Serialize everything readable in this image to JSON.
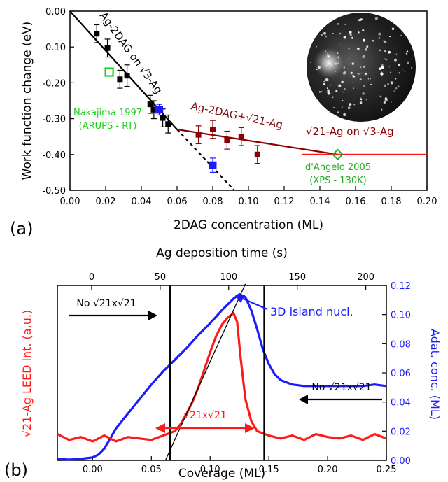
{
  "colors": {
    "black": "#000000",
    "blue": "#1b1bff",
    "red": "#ff1a1a",
    "darkred": "#8b0000",
    "wine": "#7a1010",
    "green": "#22cc22",
    "lightgreen": "#22bb22"
  },
  "panels": {
    "a": {
      "tag": "(a)",
      "inset_image": "LEED diffraction pattern (dark circular screen with bright spots)"
    },
    "b": {
      "tag": "(b)"
    }
  },
  "chart_data": [
    {
      "id": "panel-a",
      "type": "scatter",
      "title": "",
      "xlabel": "2DAG concentration (ML)",
      "ylabel": "Work function change (eV)",
      "xlim": [
        0.0,
        0.2
      ],
      "ylim": [
        -0.5,
        0.0
      ],
      "xticks": [
        0.0,
        0.02,
        0.04,
        0.06,
        0.08,
        0.1,
        0.12,
        0.14,
        0.16,
        0.18,
        0.2
      ],
      "xtick_labels": [
        "0.00",
        "0.02",
        "0.04",
        "0.06",
        "0.08",
        "0.10",
        "0.12",
        "0.14",
        "0.16",
        "0.18",
        "0.20"
      ],
      "yticks": [
        0.0,
        -0.1,
        -0.2,
        -0.3,
        -0.4,
        -0.5
      ],
      "ytick_labels": [
        "0.00",
        "-0.10",
        "-0.20",
        "-0.30",
        "-0.40",
        "-0.50"
      ],
      "grid": false,
      "series": [
        {
          "color": "#000000",
          "marker": "square",
          "points": [
            {
              "x": 0.015,
              "y": -0.063,
              "err": 0.025
            },
            {
              "x": 0.021,
              "y": -0.103,
              "err": 0.025
            },
            {
              "x": 0.028,
              "y": -0.19,
              "err": 0.025
            },
            {
              "x": 0.032,
              "y": -0.18,
              "err": 0.03
            },
            {
              "x": 0.045,
              "y": -0.26,
              "err": 0.025
            },
            {
              "x": 0.047,
              "y": -0.275,
              "err": 0.025
            },
            {
              "x": 0.052,
              "y": -0.298,
              "err": 0.025
            },
            {
              "x": 0.055,
              "y": -0.315,
              "err": 0.025
            }
          ]
        },
        {
          "color": "#8b0000",
          "marker": "square",
          "points": [
            {
              "x": 0.072,
              "y": -0.345,
              "err": 0.025
            },
            {
              "x": 0.08,
              "y": -0.33,
              "err": 0.025
            },
            {
              "x": 0.088,
              "y": -0.36,
              "err": 0.025
            },
            {
              "x": 0.096,
              "y": -0.35,
              "err": 0.025
            },
            {
              "x": 0.105,
              "y": -0.4,
              "err": 0.025
            }
          ]
        },
        {
          "color": "#1b1bff",
          "marker": "square",
          "points": [
            {
              "x": 0.05,
              "y": -0.275,
              "err": 0.015
            },
            {
              "x": 0.08,
              "y": -0.43,
              "err": 0.02
            }
          ]
        },
        {
          "name": "Nakajima 1997",
          "color": "#22cc22",
          "marker": "open-square",
          "points": [
            {
              "x": 0.022,
              "y": -0.17
            }
          ]
        },
        {
          "name": "d'Angelo 2005",
          "color": "#22aa22",
          "marker": "open-diamond",
          "points": [
            {
              "x": 0.15,
              "y": -0.4
            }
          ]
        }
      ],
      "fit_lines": [
        {
          "color": "#000000",
          "style": "solid",
          "x": [
            0.0,
            0.06
          ],
          "y": [
            0.0,
            -0.33
          ]
        },
        {
          "color": "#000000",
          "style": "dashed",
          "x": [
            0.06,
            0.092
          ],
          "y": [
            -0.33,
            -0.5
          ]
        },
        {
          "color": "#8b0000",
          "style": "solid",
          "x": [
            0.06,
            0.15
          ],
          "y": [
            -0.33,
            -0.4
          ]
        },
        {
          "color": "#ff1a1a",
          "style": "solid",
          "x": [
            0.13,
            0.2
          ],
          "y": [
            -0.4,
            -0.4
          ]
        }
      ],
      "annotations": {
        "ag_on_r3": "Ag-2DAG on √3-Ag",
        "ag_r21": "Ag-2DAG+√21-Ag",
        "r21_on_r3": "√21-Ag on √3-Ag",
        "nakajima_1": "Nakajima 1997",
        "nakajima_2": "(ARUPS - RT)",
        "dangelo_1": "d'Angelo 2005",
        "dangelo_2": "(XPS - 130K)"
      }
    },
    {
      "id": "panel-b",
      "type": "line",
      "title": "",
      "xlabel": "Coverage (ML)",
      "x2label": "Ag deposition time (s)",
      "ylabel": "√21-Ag LEED int. (a.u.)",
      "y2label": "Adat. conc. (ML)",
      "xlim": [
        -0.03,
        0.25
      ],
      "x2lim": [
        -25,
        215
      ],
      "y2lim": [
        0.0,
        0.12
      ],
      "xticks": [
        0.0,
        0.05,
        0.1,
        0.15,
        0.2,
        0.25
      ],
      "xtick_labels": [
        "0.00",
        "0.05",
        "0.10",
        "0.15",
        "0.20",
        "0.25"
      ],
      "x2ticks": [
        0,
        50,
        100,
        150,
        200
      ],
      "x2tick_labels": [
        "0",
        "50",
        "100",
        "150",
        "200"
      ],
      "y2ticks": [
        0.0,
        0.02,
        0.04,
        0.06,
        0.08,
        0.1,
        0.12
      ],
      "y2tick_labels": [
        "0.00",
        "0.02",
        "0.04",
        "0.06",
        "0.08",
        "0.10",
        "0.12"
      ],
      "grid": false,
      "series": [
        {
          "color": "#1b1bff",
          "axis": "right",
          "x": [
            -0.03,
            -0.02,
            -0.01,
            0.0,
            0.005,
            0.01,
            0.015,
            0.02,
            0.03,
            0.04,
            0.05,
            0.06,
            0.07,
            0.08,
            0.09,
            0.1,
            0.11,
            0.12,
            0.125,
            0.13,
            0.135,
            0.14,
            0.145,
            0.15,
            0.155,
            0.16,
            0.17,
            0.18,
            0.19,
            0.2,
            0.21,
            0.22,
            0.23,
            0.24,
            0.25
          ],
          "y": [
            0.001,
            0.0005,
            0.001,
            0.002,
            0.004,
            0.008,
            0.015,
            0.022,
            0.032,
            0.042,
            0.052,
            0.061,
            0.069,
            0.077,
            0.086,
            0.094,
            0.103,
            0.111,
            0.114,
            0.112,
            0.103,
            0.09,
            0.076,
            0.066,
            0.059,
            0.055,
            0.052,
            0.051,
            0.051,
            0.051,
            0.051,
            0.051,
            0.051,
            0.052,
            0.051
          ]
        },
        {
          "color": "#ff1a1a",
          "axis": "left-rel",
          "x": [
            -0.03,
            -0.02,
            -0.01,
            0.0,
            0.01,
            0.02,
            0.03,
            0.04,
            0.05,
            0.06,
            0.07,
            0.075,
            0.08,
            0.085,
            0.09,
            0.095,
            0.1,
            0.105,
            0.11,
            0.115,
            0.12,
            0.123,
            0.126,
            0.13,
            0.135,
            0.14,
            0.15,
            0.16,
            0.17,
            0.18,
            0.19,
            0.2,
            0.21,
            0.22,
            0.23,
            0.24,
            0.25
          ],
          "y": [
            0.018,
            0.014,
            0.016,
            0.013,
            0.017,
            0.013,
            0.016,
            0.015,
            0.014,
            0.017,
            0.02,
            0.025,
            0.032,
            0.04,
            0.05,
            0.062,
            0.074,
            0.085,
            0.093,
            0.098,
            0.101,
            0.095,
            0.07,
            0.042,
            0.027,
            0.02,
            0.017,
            0.015,
            0.017,
            0.014,
            0.018,
            0.016,
            0.015,
            0.017,
            0.014,
            0.018,
            0.015
          ]
        }
      ],
      "markers": {
        "vlines": [
          0.066,
          0.146
        ],
        "tangent": {
          "x": [
            0.062,
            0.13
          ],
          "y": [
            0.0,
            0.121
          ]
        }
      },
      "annotations": {
        "no_r21_left": "No √21x√21",
        "no_r21_right": "No √21x√21",
        "r21_range": "√21x√21",
        "nucl": "3D island nucl."
      }
    }
  ]
}
